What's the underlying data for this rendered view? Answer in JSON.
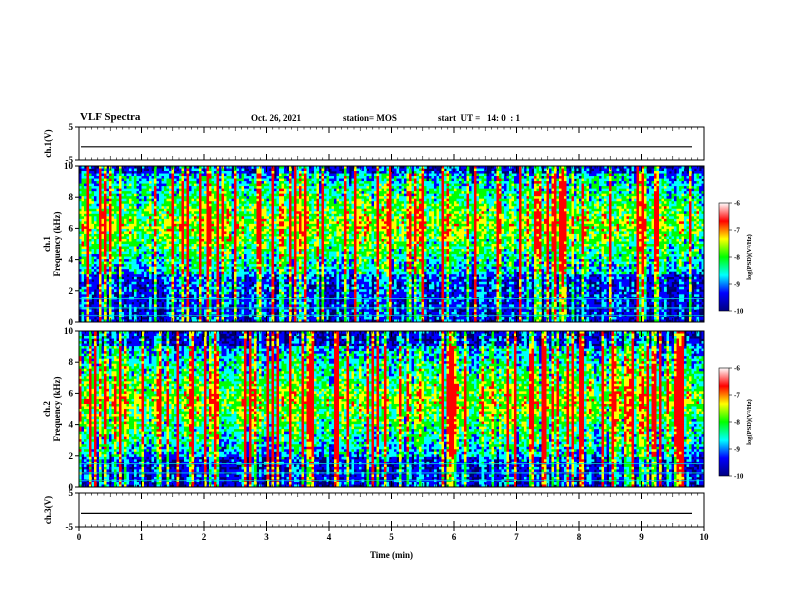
{
  "header": {
    "title": "VLF Spectra",
    "date": "Oct. 26, 2021",
    "station": "station= MOS",
    "start": "start  UT =   14: 0  : 1"
  },
  "chart_data": [
    {
      "type": "line",
      "ylabel": "ch.1(V)",
      "ylim": [
        -5,
        5
      ],
      "yticks": [
        "5",
        "-5"
      ],
      "xlim": [
        0,
        10
      ],
      "series": [
        {
          "values": [
            -1,
            -1
          ]
        }
      ]
    },
    {
      "type": "heatmap",
      "ylabel": "ch.1 Frequency (kHz)",
      "ylim": [
        0,
        10
      ],
      "yticks": [
        "0",
        "2",
        "4",
        "6",
        "8",
        "10"
      ],
      "xlim": [
        0,
        10
      ],
      "colorbar": {
        "label": "log(PSD)(V²/Hz)",
        "range": [
          -10,
          -6
        ],
        "ticks": [
          "-6",
          "-7",
          "-8",
          "-9",
          "-10"
        ]
      },
      "colors": [
        "#00007f",
        "#0000ff",
        "#00ffff",
        "#00ff00",
        "#ffff00",
        "#ff0000",
        "#ffffff"
      ],
      "intensity_band_khz": [
        3,
        9.5
      ]
    },
    {
      "type": "heatmap",
      "ylabel": "ch.2 Frequency (kHz)",
      "ylim": [
        0,
        10
      ],
      "yticks": [
        "0",
        "2",
        "4",
        "6",
        "8",
        "10"
      ],
      "xlim": [
        0,
        10
      ],
      "colorbar": {
        "label": "log(PSD)(V²/Hz)",
        "range": [
          -10,
          -6
        ],
        "ticks": [
          "-6",
          "-7",
          "-8",
          "-9",
          "-10"
        ]
      },
      "colors": [
        "#00007f",
        "#0000ff",
        "#00ffff",
        "#00ff00",
        "#ffff00",
        "#ff0000",
        "#ffffff"
      ],
      "intensity_band_khz": [
        2,
        9
      ]
    },
    {
      "type": "line",
      "ylabel": "ch.3(V)",
      "ylim": [
        -5,
        5
      ],
      "yticks": [
        "5",
        "-5"
      ],
      "xlim": [
        0,
        10
      ],
      "xlabel": "Time  (min)",
      "xticks": [
        "0",
        "1",
        "2",
        "3",
        "4",
        "5",
        "6",
        "7",
        "8",
        "9",
        "10"
      ],
      "series": [
        {
          "values": [
            -1,
            -1
          ]
        }
      ]
    }
  ]
}
